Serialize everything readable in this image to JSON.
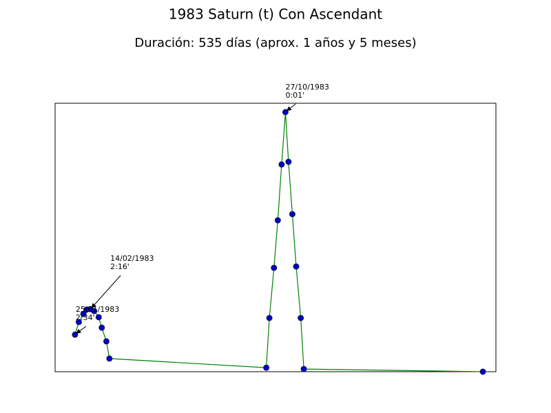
{
  "chart_data": {
    "type": "line",
    "title": "1983 Saturn (t) Con Ascendant",
    "subtitle": "Duración: 535 días (aprox. 1 años y 5 meses)",
    "x": [
      0,
      5,
      11,
      15,
      20,
      25,
      31,
      35,
      41,
      45,
      250,
      254,
      260,
      265,
      270,
      275,
      279,
      284,
      289,
      295,
      299,
      533
    ],
    "series": [
      {
        "color": "#008000",
        "marker_color": "#0000cd",
        "values": [
          13.8,
          18.5,
          21.5,
          23.1,
          23.3,
          22.6,
          20.3,
          16.4,
          11.3,
          4.9,
          1.5,
          20,
          38.7,
          56.4,
          77.2,
          96.7,
          78.2,
          58.7,
          39.2,
          20,
          1,
          0
        ]
      }
    ],
    "xlim": [
      -26,
      550
    ],
    "ylim": [
      0,
      100
    ],
    "annotations": [
      {
        "point": 0,
        "date": "25/01/1983",
        "label": "2:34'"
      },
      {
        "point": 4,
        "date": "14/02/1983",
        "label": "2:16'"
      },
      {
        "point": 15,
        "date": "27/10/1983",
        "label": "0:01'"
      }
    ]
  }
}
